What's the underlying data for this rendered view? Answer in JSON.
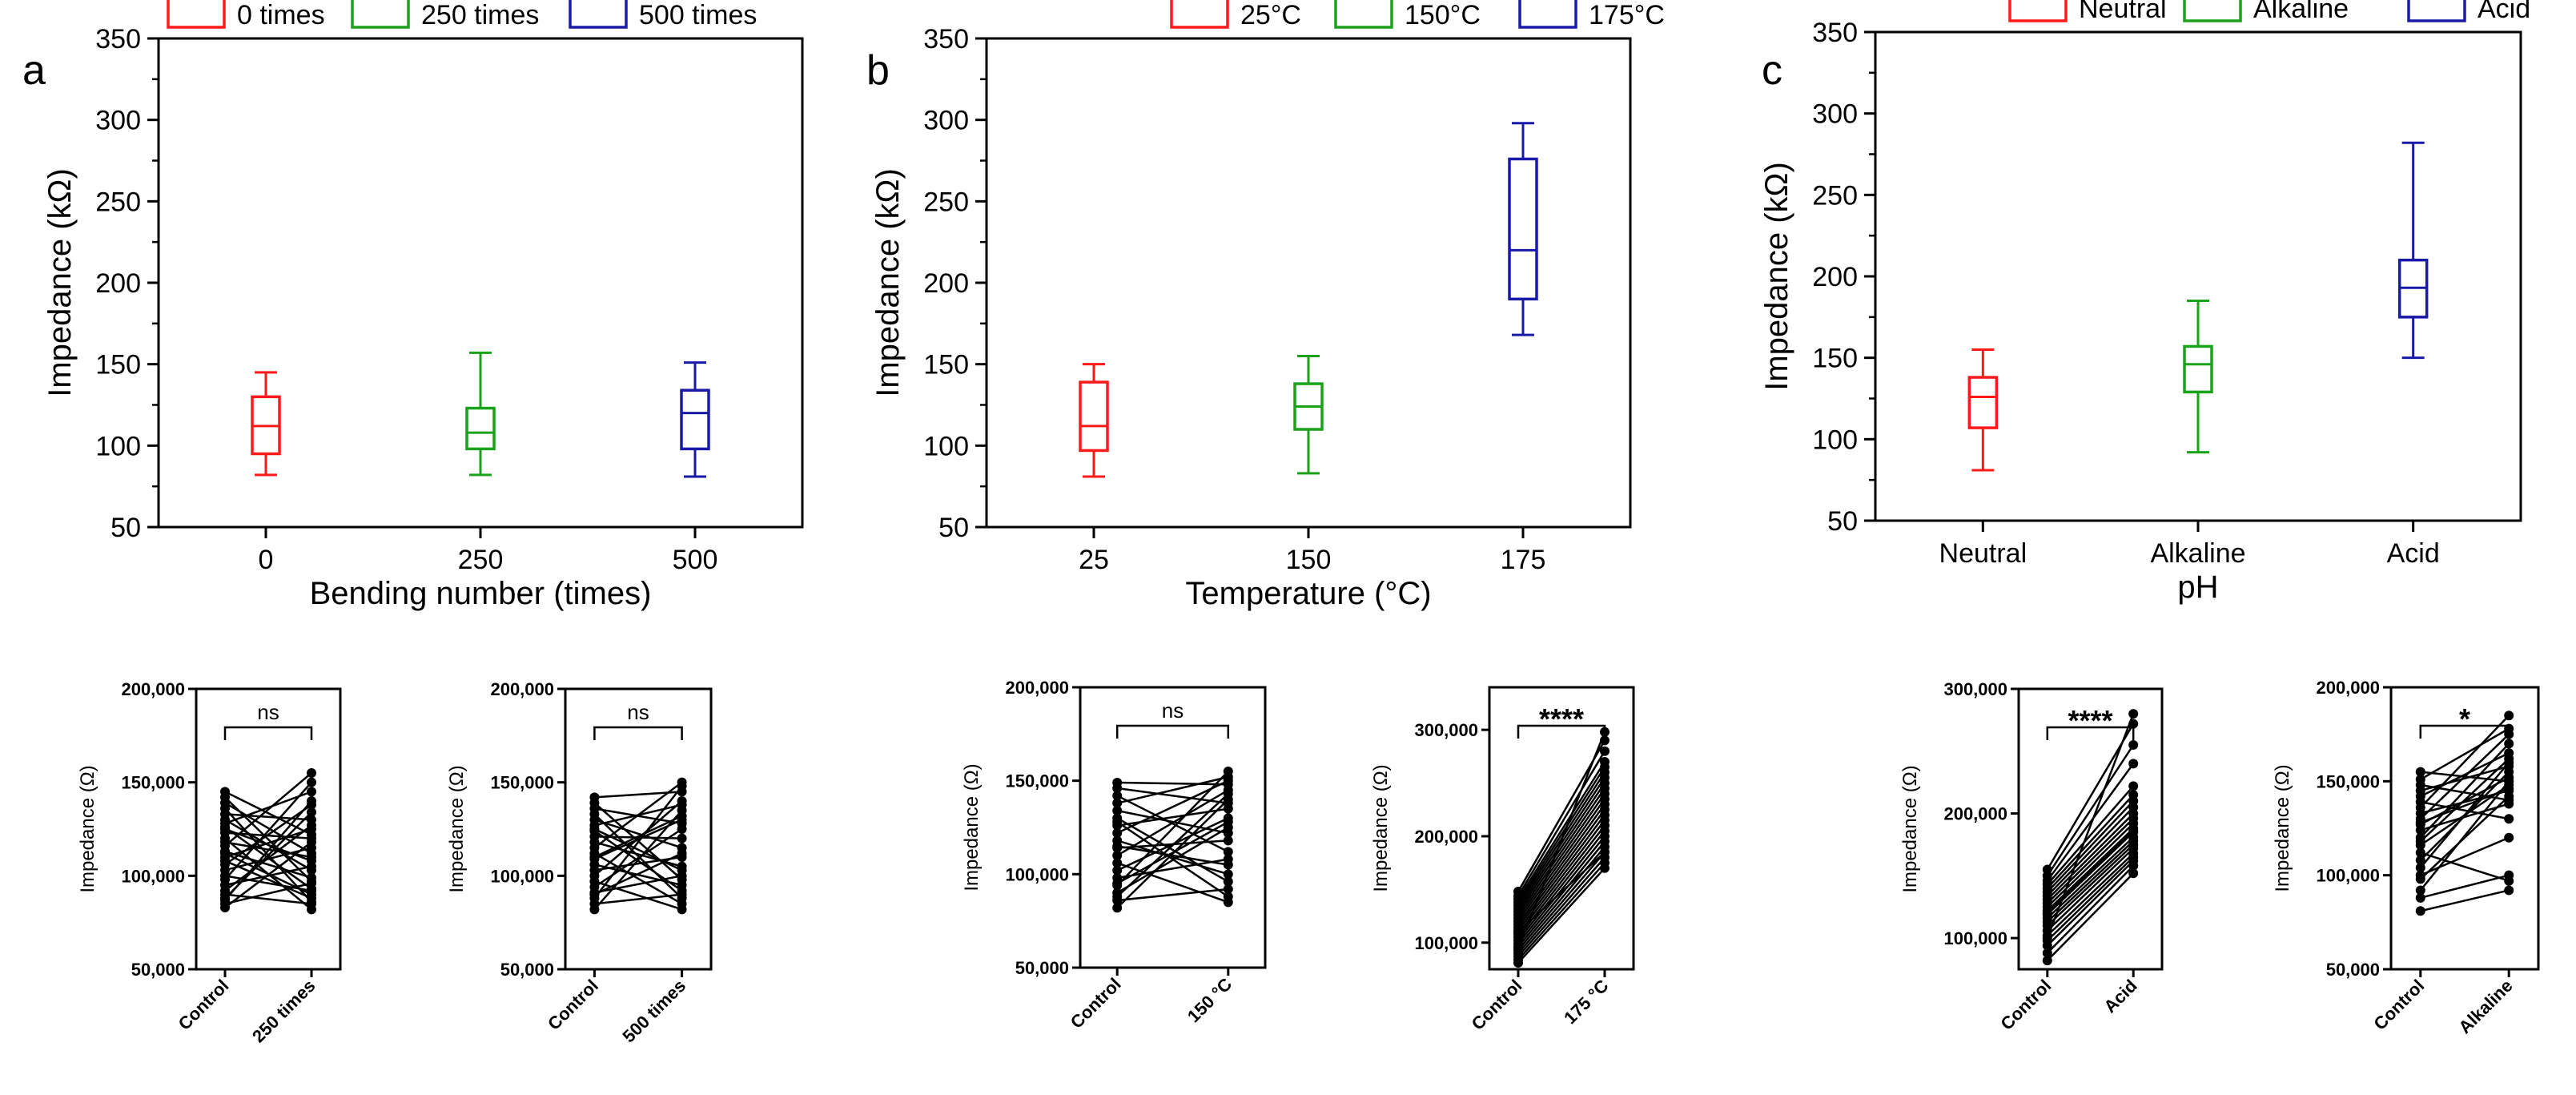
{
  "panels": [
    {
      "letter": "a"
    },
    {
      "letter": "b"
    },
    {
      "letter": "c"
    }
  ],
  "chart_data": [
    {
      "id": "a-box",
      "type": "box",
      "title": "",
      "xlabel": "Bending number (times)",
      "ylabel": "Impedance (kΩ)",
      "ylim": [
        50,
        350
      ],
      "yticks": [
        50,
        100,
        150,
        200,
        250,
        300,
        350
      ],
      "categories": [
        "0",
        "250",
        "500"
      ],
      "legend": [
        "0 times",
        "250 times",
        "500 times"
      ],
      "legend_position": "top",
      "colors": [
        "#ff1a1a",
        "#1aa31a",
        "#1a1aa8"
      ],
      "boxes": [
        {
          "min": 82,
          "q1": 95,
          "median": 112,
          "q3": 130,
          "max": 145
        },
        {
          "min": 82,
          "q1": 98,
          "median": 108,
          "q3": 123,
          "max": 157
        },
        {
          "min": 81,
          "q1": 98,
          "median": 120,
          "q3": 134,
          "max": 151
        }
      ]
    },
    {
      "id": "b-box",
      "type": "box",
      "title": "",
      "xlabel": "Temperature (°C)",
      "ylabel": "Impedance (kΩ)",
      "ylim": [
        50,
        350
      ],
      "yticks": [
        50,
        100,
        150,
        200,
        250,
        300,
        350
      ],
      "categories": [
        "25",
        "150",
        "175"
      ],
      "legend": [
        "25°C",
        "150°C",
        "175°C"
      ],
      "legend_position": "top",
      "colors": [
        "#ff1a1a",
        "#1aa31a",
        "#1a1aa8"
      ],
      "boxes": [
        {
          "min": 81,
          "q1": 97,
          "median": 112,
          "q3": 139,
          "max": 150
        },
        {
          "min": 83,
          "q1": 110,
          "median": 124,
          "q3": 138,
          "max": 155
        },
        {
          "min": 168,
          "q1": 190,
          "median": 220,
          "q3": 276,
          "max": 298
        }
      ]
    },
    {
      "id": "c-box",
      "type": "box",
      "title": "",
      "xlabel": "pH",
      "ylabel": "Impedance (kΩ)",
      "ylim": [
        50,
        350
      ],
      "yticks": [
        50,
        100,
        150,
        200,
        250,
        300,
        350
      ],
      "categories": [
        "Neutral",
        "Alkaline",
        "Acid"
      ],
      "legend": [
        "Neutral",
        "Alkaline",
        "Acid"
      ],
      "legend_position": "top",
      "colors": [
        "#ff1a1a",
        "#1aa31a",
        "#1a1aa8"
      ],
      "boxes": [
        {
          "min": 81,
          "q1": 107,
          "median": 126,
          "q3": 138,
          "max": 155
        },
        {
          "min": 92,
          "q1": 129,
          "median": 146,
          "q3": 157,
          "max": 185
        },
        {
          "min": 150,
          "q1": 175,
          "median": 193,
          "q3": 210,
          "max": 282
        }
      ]
    },
    {
      "id": "a-paired-250",
      "type": "paired",
      "ylabel": "Impedance (Ω)",
      "ylim": [
        50000,
        200000
      ],
      "yticks": [
        50000,
        100000,
        150000,
        200000
      ],
      "ytick_labels": [
        "50,000",
        "100,000",
        "150,000",
        "200,000"
      ],
      "categories": [
        "Control",
        "250 times"
      ],
      "significance": "ns",
      "control": [
        83000,
        85000,
        88000,
        90000,
        92000,
        95000,
        98000,
        100000,
        103000,
        106000,
        108000,
        110000,
        113000,
        116000,
        118000,
        120000,
        123000,
        126000,
        128000,
        130000,
        133000,
        136000,
        139000,
        142000,
        145000,
        87000,
        112000,
        125000
      ],
      "treated": [
        118000,
        96000,
        134000,
        85000,
        127000,
        105000,
        150000,
        92000,
        115000,
        138000,
        88000,
        125000,
        99000,
        155000,
        110000,
        82000,
        120000,
        93000,
        145000,
        103000,
        130000,
        86000,
        112000,
        97000,
        122000,
        140000,
        90000,
        108000
      ]
    },
    {
      "id": "a-paired-500",
      "type": "paired",
      "ylabel": "Impedance (Ω)",
      "ylim": [
        50000,
        200000
      ],
      "yticks": [
        50000,
        100000,
        150000,
        200000
      ],
      "ytick_labels": [
        "50,000",
        "100,000",
        "150,000",
        "200,000"
      ],
      "categories": [
        "Control",
        "500 times"
      ],
      "significance": "ns",
      "control": [
        82000,
        85000,
        88000,
        91000,
        94000,
        97000,
        100000,
        103000,
        106000,
        109000,
        112000,
        115000,
        118000,
        121000,
        124000,
        127000,
        130000,
        133000,
        136000,
        139000,
        142000,
        90000,
        110000,
        125000
      ],
      "treated": [
        135000,
        90000,
        148000,
        100000,
        125000,
        82000,
        140000,
        110000,
        95000,
        130000,
        85000,
        150000,
        105000,
        120000,
        92000,
        138000,
        115000,
        88000,
        128000,
        98000,
        145000,
        112000,
        132000,
        103000
      ]
    },
    {
      "id": "b-paired-150",
      "type": "paired",
      "ylabel": "Impedance (Ω)",
      "ylim": [
        50000,
        200000
      ],
      "yticks": [
        50000,
        100000,
        150000,
        200000
      ],
      "ytick_labels": [
        "50,000",
        "100,000",
        "150,000",
        "200,000"
      ],
      "categories": [
        "Control",
        "150 °C"
      ],
      "significance": "ns",
      "control": [
        82000,
        86000,
        90000,
        94000,
        98000,
        102000,
        106000,
        110000,
        114000,
        118000,
        122000,
        126000,
        130000,
        134000,
        138000,
        142000,
        146000,
        149000,
        95000,
        115000,
        128000,
        88000
      ],
      "treated": [
        140000,
        92000,
        125000,
        155000,
        108000,
        130000,
        85000,
        145000,
        118000,
        100000,
        150000,
        135000,
        96000,
        122000,
        152000,
        112000,
        138000,
        148000,
        128000,
        105000,
        88000,
        143000
      ]
    },
    {
      "id": "b-paired-175",
      "type": "paired",
      "ylabel": "Impedance (Ω)",
      "ylim": [
        75000,
        340000
      ],
      "yticks": [
        100000,
        200000,
        300000
      ],
      "ytick_labels": [
        "100,000",
        "200,000",
        "300,000"
      ],
      "categories": [
        "Control",
        "175 °C"
      ],
      "significance": "****",
      "control": [
        81000,
        84000,
        87000,
        90000,
        93000,
        96000,
        99000,
        102000,
        105000,
        108000,
        111000,
        114000,
        117000,
        120000,
        123000,
        126000,
        129000,
        132000,
        135000,
        138000,
        141000,
        144000,
        148000,
        95000,
        110000
      ],
      "treated": [
        170000,
        175000,
        180000,
        185000,
        190000,
        195000,
        200000,
        205000,
        210000,
        215000,
        220000,
        225000,
        230000,
        235000,
        240000,
        245000,
        250000,
        255000,
        260000,
        265000,
        270000,
        280000,
        290000,
        298000,
        185000
      ]
    },
    {
      "id": "c-paired-acid",
      "type": "paired",
      "ylabel": "Impedance (Ω)",
      "ylim": [
        75000,
        300000
      ],
      "yticks": [
        100000,
        200000,
        300000
      ],
      "ytick_labels": [
        "100,000",
        "200,000",
        "300,000"
      ],
      "categories": [
        "Control",
        "Acid"
      ],
      "significance": "****",
      "control": [
        82000,
        88000,
        94000,
        98000,
        102000,
        106000,
        110000,
        113000,
        116000,
        119000,
        122000,
        125000,
        128000,
        131000,
        134000,
        137000,
        140000,
        143000,
        146000,
        150000,
        155000,
        100000,
        120000
      ],
      "treated": [
        152000,
        158000,
        162000,
        165000,
        168000,
        172000,
        175000,
        178000,
        181000,
        185000,
        188000,
        192000,
        196000,
        200000,
        205000,
        210000,
        215000,
        222000,
        240000,
        255000,
        272000,
        280000,
        186000
      ]
    },
    {
      "id": "c-paired-alkaline",
      "type": "paired",
      "ylabel": "Impedance (Ω)",
      "ylim": [
        50000,
        200000
      ],
      "yticks": [
        50000,
        100000,
        150000,
        200000
      ],
      "ytick_labels": [
        "50,000",
        "100,000",
        "150,000",
        "200,000"
      ],
      "categories": [
        "Control",
        "Alkaline"
      ],
      "significance": "*",
      "control": [
        81000,
        88000,
        92000,
        98000,
        104000,
        108000,
        112000,
        116000,
        120000,
        124000,
        127000,
        130000,
        133000,
        136000,
        139000,
        142000,
        145000,
        148000,
        151000,
        155000,
        100000,
        118000,
        128000
      ],
      "treated": [
        92000,
        100000,
        150000,
        142000,
        160000,
        155000,
        97000,
        148000,
        170000,
        138000,
        152000,
        175000,
        145000,
        185000,
        130000,
        165000,
        158000,
        140000,
        178000,
        150000,
        120000,
        162000,
        146000
      ]
    }
  ]
}
